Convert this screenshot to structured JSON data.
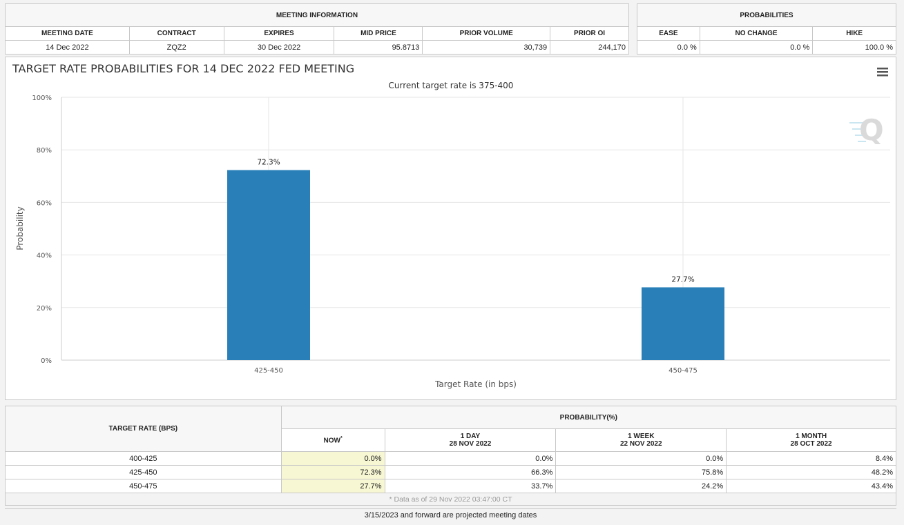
{
  "meeting_info": {
    "section_title": "MEETING INFORMATION",
    "headers": [
      "MEETING DATE",
      "CONTRACT",
      "EXPIRES",
      "MID PRICE",
      "PRIOR VOLUME",
      "PRIOR OI"
    ],
    "values": [
      "14 Dec 2022",
      "ZQZ2",
      "30 Dec 2022",
      "95.8713",
      "30,739",
      "244,170"
    ]
  },
  "probabilities": {
    "section_title": "PROBABILITIES",
    "headers": [
      "EASE",
      "NO CHANGE",
      "HIKE"
    ],
    "values": [
      "0.0 %",
      "0.0 %",
      "100.0 %"
    ]
  },
  "chart": {
    "menu_icon": "hamburger-menu-icon",
    "watermark_icon": "q-logo-icon",
    "colors": {
      "bar": "#2980b9",
      "grid": "#e6e6e6"
    }
  },
  "chart_data": {
    "type": "bar",
    "title": "TARGET RATE PROBABILITIES FOR 14 DEC 2022 FED MEETING",
    "subtitle": "Current target rate is 375-400",
    "categories": [
      "425-450",
      "450-475"
    ],
    "values": [
      72.3,
      27.7
    ],
    "data_labels": [
      "72.3%",
      "27.7%"
    ],
    "xlabel": "Target Rate (in bps)",
    "ylabel": "Probability",
    "ylim": [
      0,
      100
    ],
    "yticks": [
      "0%",
      "20%",
      "40%",
      "60%",
      "80%",
      "100%"
    ],
    "grid": true
  },
  "bottom_table": {
    "target_header": "TARGET RATE (BPS)",
    "prob_header": "PROBABILITY(%)",
    "col_now": "NOW",
    "col_now_mark": "*",
    "col_1day": "1 DAY",
    "col_1day_date": "28 NOV 2022",
    "col_1week": "1 WEEK",
    "col_1week_date": "22 NOV 2022",
    "col_1month": "1 MONTH",
    "col_1month_date": "28 OCT 2022",
    "rows": [
      {
        "rate": "400-425",
        "now": "0.0%",
        "day": "0.0%",
        "week": "0.0%",
        "month": "8.4%"
      },
      {
        "rate": "425-450",
        "now": "72.3%",
        "day": "66.3%",
        "week": "75.8%",
        "month": "48.2%"
      },
      {
        "rate": "450-475",
        "now": "27.7%",
        "day": "33.7%",
        "week": "24.2%",
        "month": "43.4%"
      }
    ],
    "note": "* Data as of 29 Nov 2022 03:47:00 CT"
  },
  "footer": "3/15/2023 and forward are projected meeting dates"
}
